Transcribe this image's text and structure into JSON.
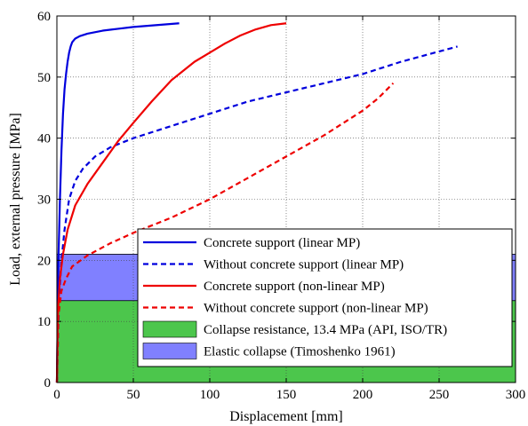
{
  "chart_data": {
    "type": "line",
    "title": "",
    "xlabel": "Displacement [mm]",
    "ylabel": "Load, external pressure [MPa]",
    "xlim": [
      0,
      300
    ],
    "ylim": [
      0,
      60
    ],
    "xticks": [
      0,
      50,
      100,
      150,
      200,
      250,
      300
    ],
    "yticks": [
      0,
      10,
      20,
      30,
      40,
      50,
      60
    ],
    "grid": true,
    "legend_position": "right",
    "areas": [
      {
        "name": "Collapse resistance, 13.4 MPa (API, ISO/TR)",
        "y": 13.4,
        "color": "#4cc64c"
      },
      {
        "name": "Elastic collapse (Timoshenko 1961)",
        "y": 21,
        "color": "#8080ff"
      }
    ],
    "series": [
      {
        "name": "Concrete support (linear MP)",
        "color": "#0000dd",
        "dash": "solid",
        "points": [
          [
            0,
            0
          ],
          [
            0.5,
            10
          ],
          [
            1,
            20
          ],
          [
            2,
            30
          ],
          [
            3,
            38
          ],
          [
            4,
            44
          ],
          [
            5,
            48
          ],
          [
            6,
            50.5
          ],
          [
            7,
            52.5
          ],
          [
            8,
            54
          ],
          [
            9,
            55
          ],
          [
            10,
            55.7
          ],
          [
            12,
            56.3
          ],
          [
            15,
            56.7
          ],
          [
            20,
            57.1
          ],
          [
            30,
            57.6
          ],
          [
            40,
            57.9
          ],
          [
            50,
            58.2
          ],
          [
            60,
            58.4
          ],
          [
            70,
            58.6
          ],
          [
            80,
            58.8
          ]
        ]
      },
      {
        "name": "Without concrete support (linear MP)",
        "color": "#0000dd",
        "dash": "dashed",
        "points": [
          [
            0,
            0
          ],
          [
            1,
            10
          ],
          [
            2,
            16
          ],
          [
            3,
            20
          ],
          [
            5,
            25
          ],
          [
            8,
            30
          ],
          [
            12,
            33
          ],
          [
            17,
            35
          ],
          [
            25,
            37
          ],
          [
            35,
            38.5
          ],
          [
            50,
            40
          ],
          [
            75,
            42
          ],
          [
            100,
            44
          ],
          [
            125,
            46
          ],
          [
            150,
            47.5
          ],
          [
            175,
            49
          ],
          [
            200,
            50.5
          ],
          [
            225,
            52.5
          ],
          [
            262,
            55
          ]
        ]
      },
      {
        "name": "Concrete support (non-linear MP)",
        "color": "#ee0000",
        "dash": "solid",
        "points": [
          [
            0,
            0
          ],
          [
            0.5,
            10
          ],
          [
            1,
            13
          ],
          [
            2,
            17
          ],
          [
            4,
            21
          ],
          [
            7,
            25
          ],
          [
            12,
            29
          ],
          [
            20,
            32.5
          ],
          [
            30,
            36
          ],
          [
            40,
            39.5
          ],
          [
            50,
            42.5
          ],
          [
            62,
            46
          ],
          [
            75,
            49.5
          ],
          [
            90,
            52.5
          ],
          [
            100,
            54
          ],
          [
            110,
            55.5
          ],
          [
            120,
            56.8
          ],
          [
            130,
            57.8
          ],
          [
            140,
            58.5
          ],
          [
            150,
            58.8
          ]
        ]
      },
      {
        "name": "Without concrete support (non-linear MP)",
        "color": "#ee0000",
        "dash": "dashed",
        "points": [
          [
            0,
            0
          ],
          [
            1,
            11
          ],
          [
            3,
            15
          ],
          [
            6,
            17
          ],
          [
            10,
            19
          ],
          [
            20,
            20.8
          ],
          [
            35,
            22.8
          ],
          [
            50,
            24.5
          ],
          [
            75,
            27
          ],
          [
            100,
            30
          ],
          [
            125,
            33.5
          ],
          [
            150,
            37
          ],
          [
            175,
            40.5
          ],
          [
            200,
            44.5
          ],
          [
            210,
            46.5
          ],
          [
            220,
            49
          ]
        ]
      }
    ]
  }
}
